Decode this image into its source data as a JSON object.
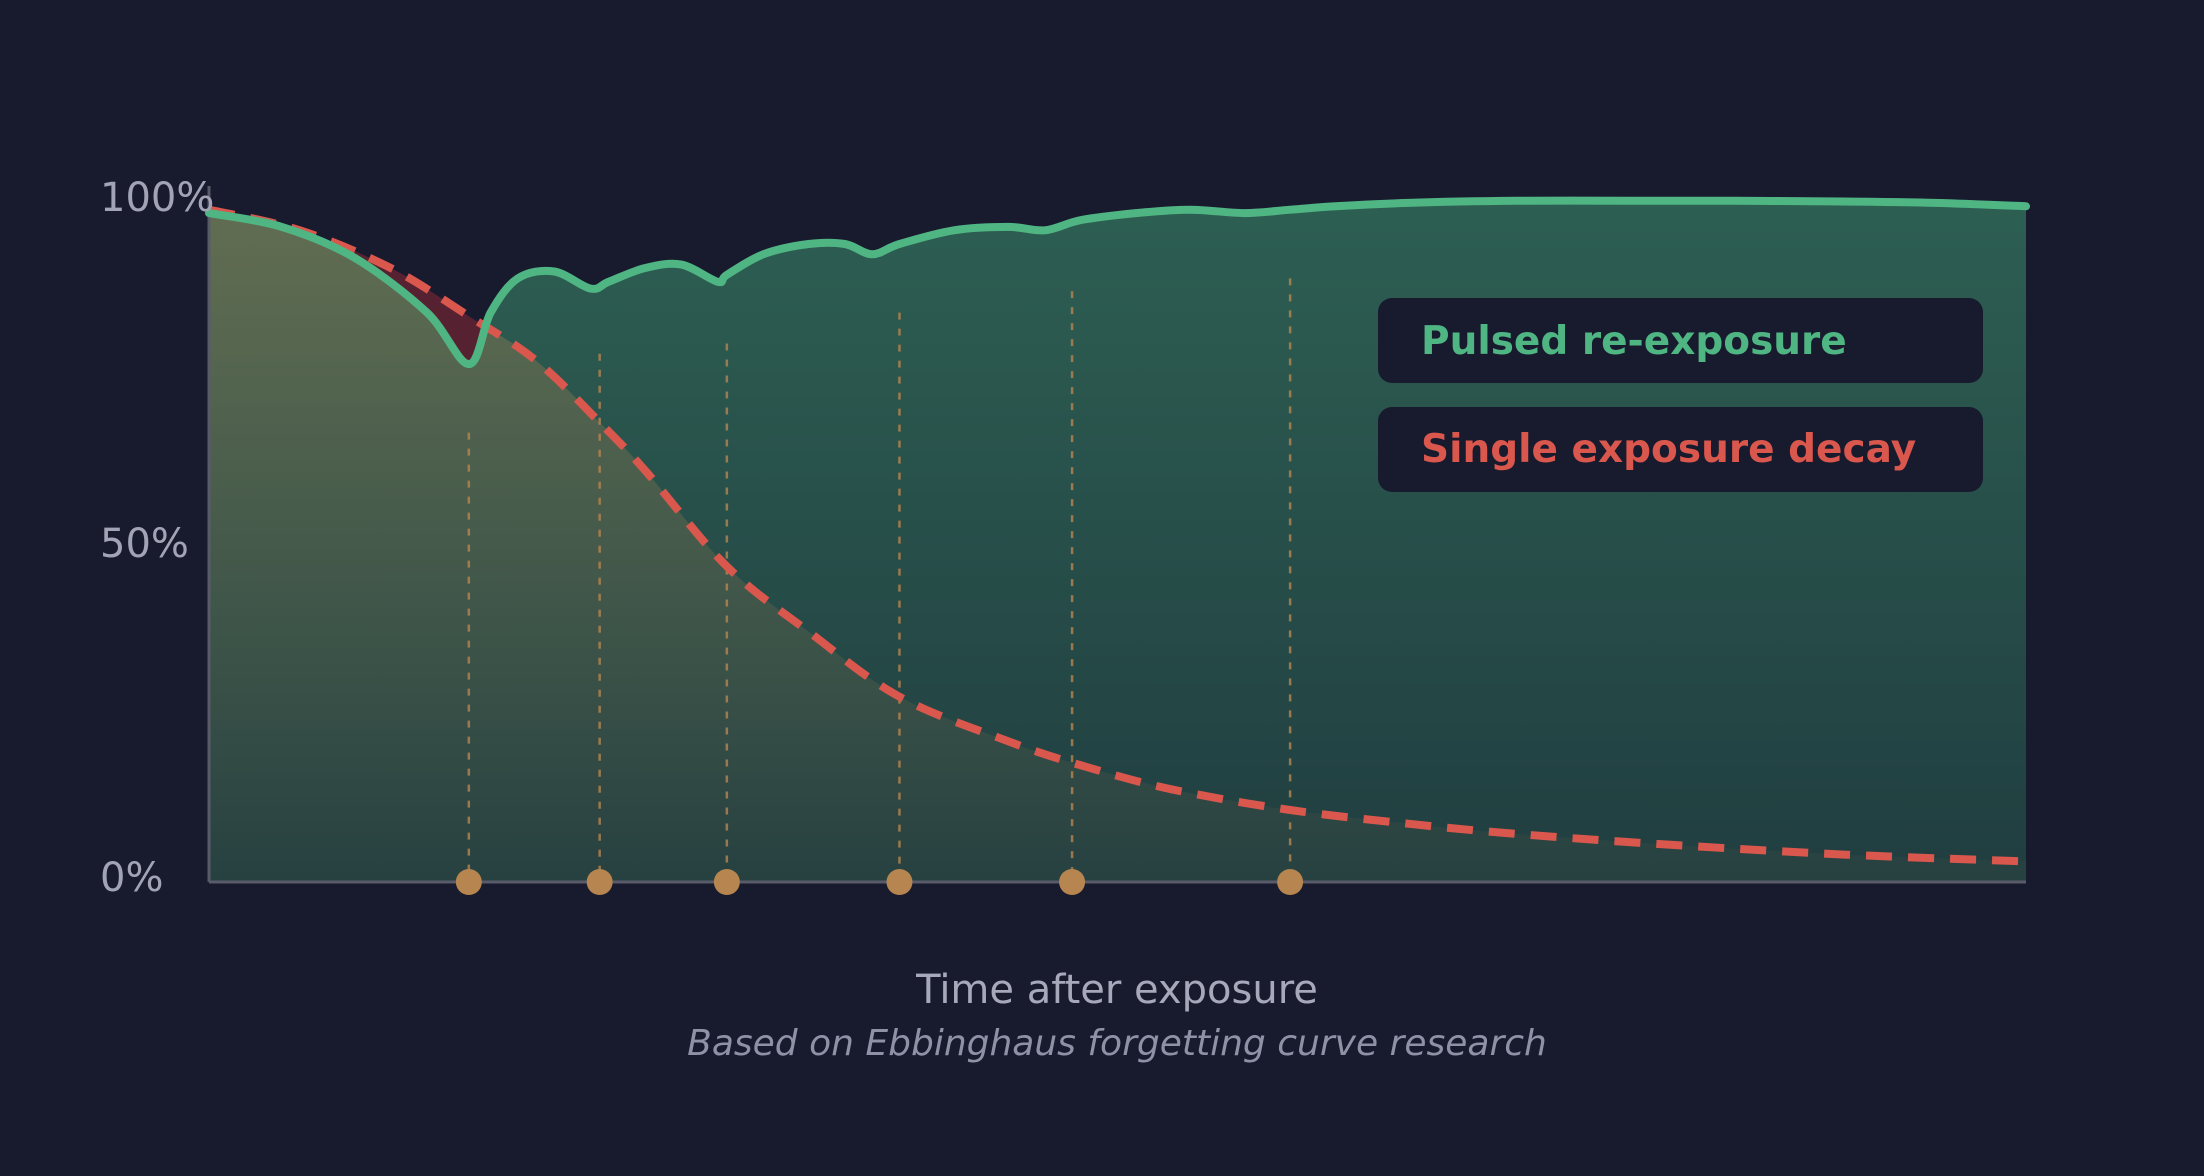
{
  "chart_data": {
    "type": "line",
    "title": "",
    "xlabel": "Time after exposure",
    "ylabel": "",
    "caption": "Based on Ebbinghaus forgetting curve research",
    "xlim": [
      0,
      100
    ],
    "ylim": [
      0,
      100
    ],
    "y_ticks": [
      {
        "value": 0,
        "label": "0%"
      },
      {
        "value": 50,
        "label": "50%"
      },
      {
        "value": 100,
        "label": "100%"
      }
    ],
    "legend_position": "top-right",
    "series": [
      {
        "name": "Pulsed re-exposure",
        "color": "#4fb583",
        "style": "solid",
        "x": [
          0,
          4,
          8,
          12,
          14.3,
          15.5,
          17,
          19,
          21,
          22,
          24,
          26,
          28,
          28.5,
          30.5,
          33,
          35,
          36.5,
          38,
          41,
          44,
          46,
          48,
          51,
          54,
          57,
          59.5,
          62,
          66,
          72,
          78,
          84,
          90,
          95,
          100
        ],
        "values": [
          97.5,
          95.5,
          91,
          83,
          75.5,
          83,
          88,
          89,
          86.5,
          87.5,
          89.5,
          90,
          87.5,
          88.5,
          91.5,
          93,
          93,
          91.5,
          93,
          95,
          95.5,
          95,
          96.5,
          97.5,
          98,
          97.5,
          98,
          98.5,
          99,
          99.3,
          99.3,
          99.3,
          99.2,
          99,
          98.5
        ]
      },
      {
        "name": "Single exposure decay",
        "color": "#d9574c",
        "style": "dashed",
        "x": [
          0,
          5,
          10,
          14.3,
          18,
          21.5,
          24,
          28.5,
          33,
          38,
          44,
          48,
          53,
          59.5,
          66,
          72,
          80,
          90,
          100
        ],
        "values": [
          98,
          95,
          89.5,
          82.5,
          76,
          67,
          60,
          46,
          36.5,
          27,
          20.5,
          17,
          13.5,
          10.5,
          8.5,
          7,
          5.5,
          4,
          3
        ]
      }
    ],
    "reexposure_markers": {
      "color": "#b68550",
      "x": [
        14.3,
        21.5,
        28.5,
        38,
        47.5,
        59.5
      ]
    }
  },
  "colors": {
    "background": "#181a2e",
    "axis": "#595b6b",
    "legend_box": "#181a2e"
  }
}
